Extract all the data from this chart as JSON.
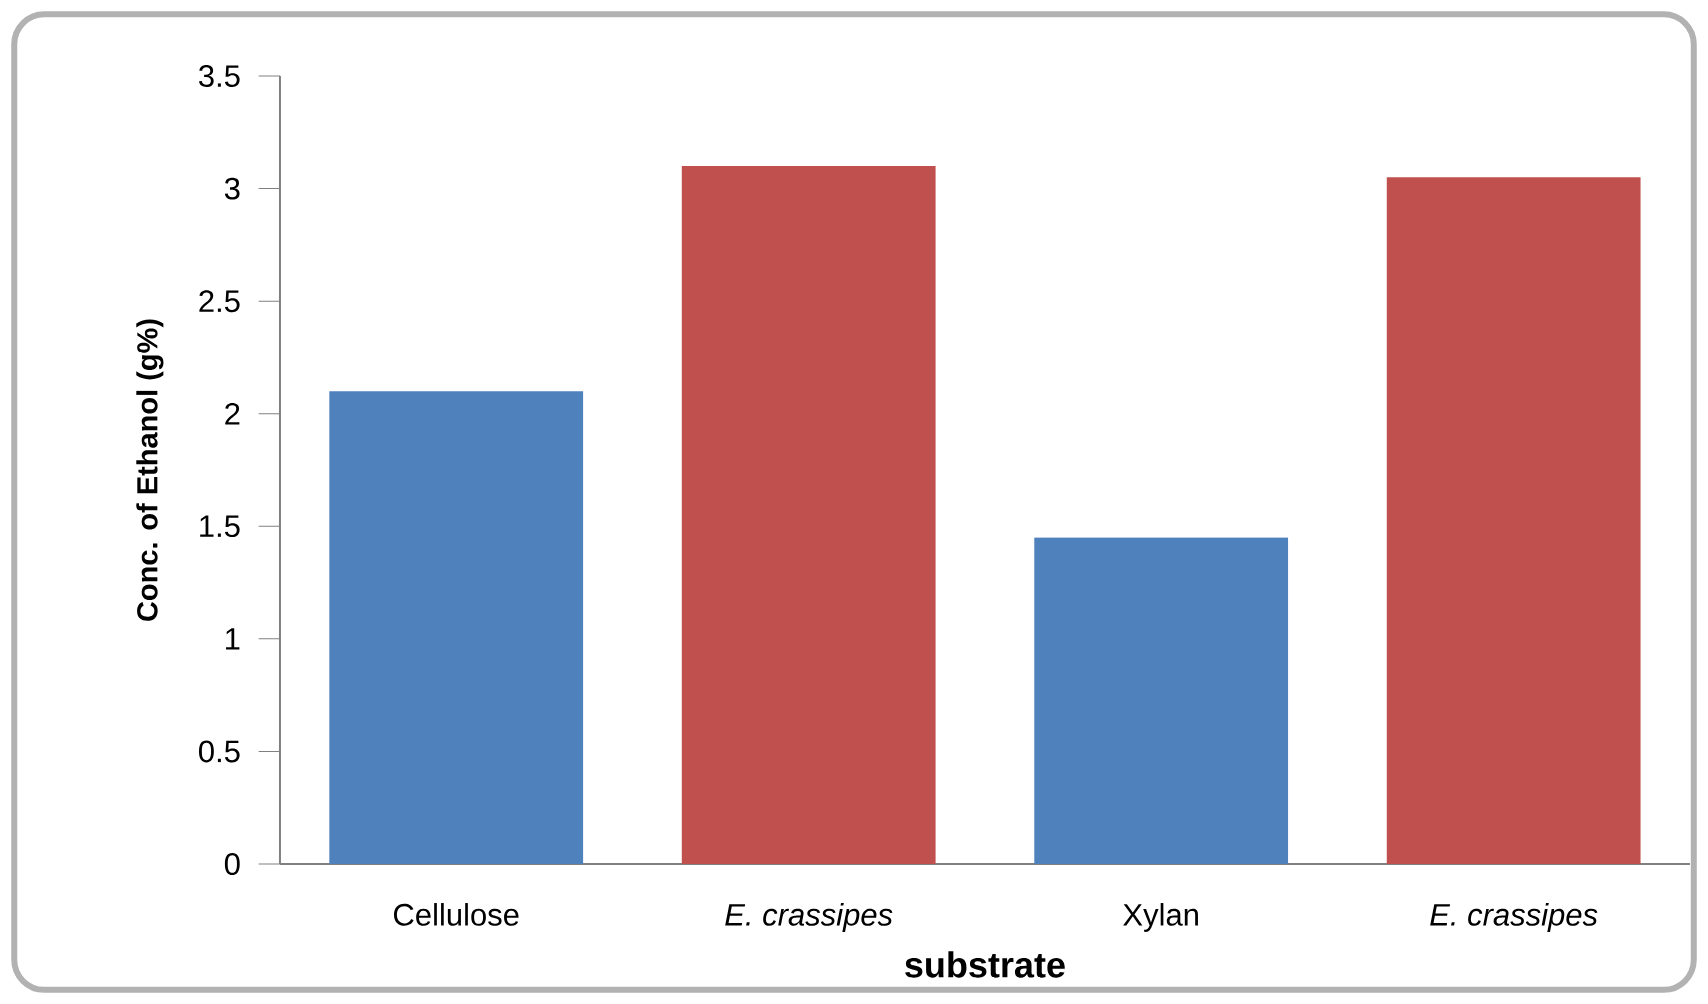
{
  "chart_data": {
    "type": "bar",
    "xlabel": "substrate",
    "ylabel": "Conc. of Ethanol (g%)",
    "categories": [
      "Cellulose",
      "*E. crassipes*",
      "Xylan",
      "*E. crassipes*"
    ],
    "values": [
      2.1,
      3.1,
      1.45,
      3.05
    ],
    "colors": [
      "#4f81bd",
      "#c0504d",
      "#4f81bd",
      "#c0504d"
    ],
    "ylim": [
      0,
      3.5
    ],
    "yticks": [
      0,
      0.5,
      1,
      1.5,
      2,
      2.5,
      3,
      3.5
    ],
    "grid": false
  }
}
